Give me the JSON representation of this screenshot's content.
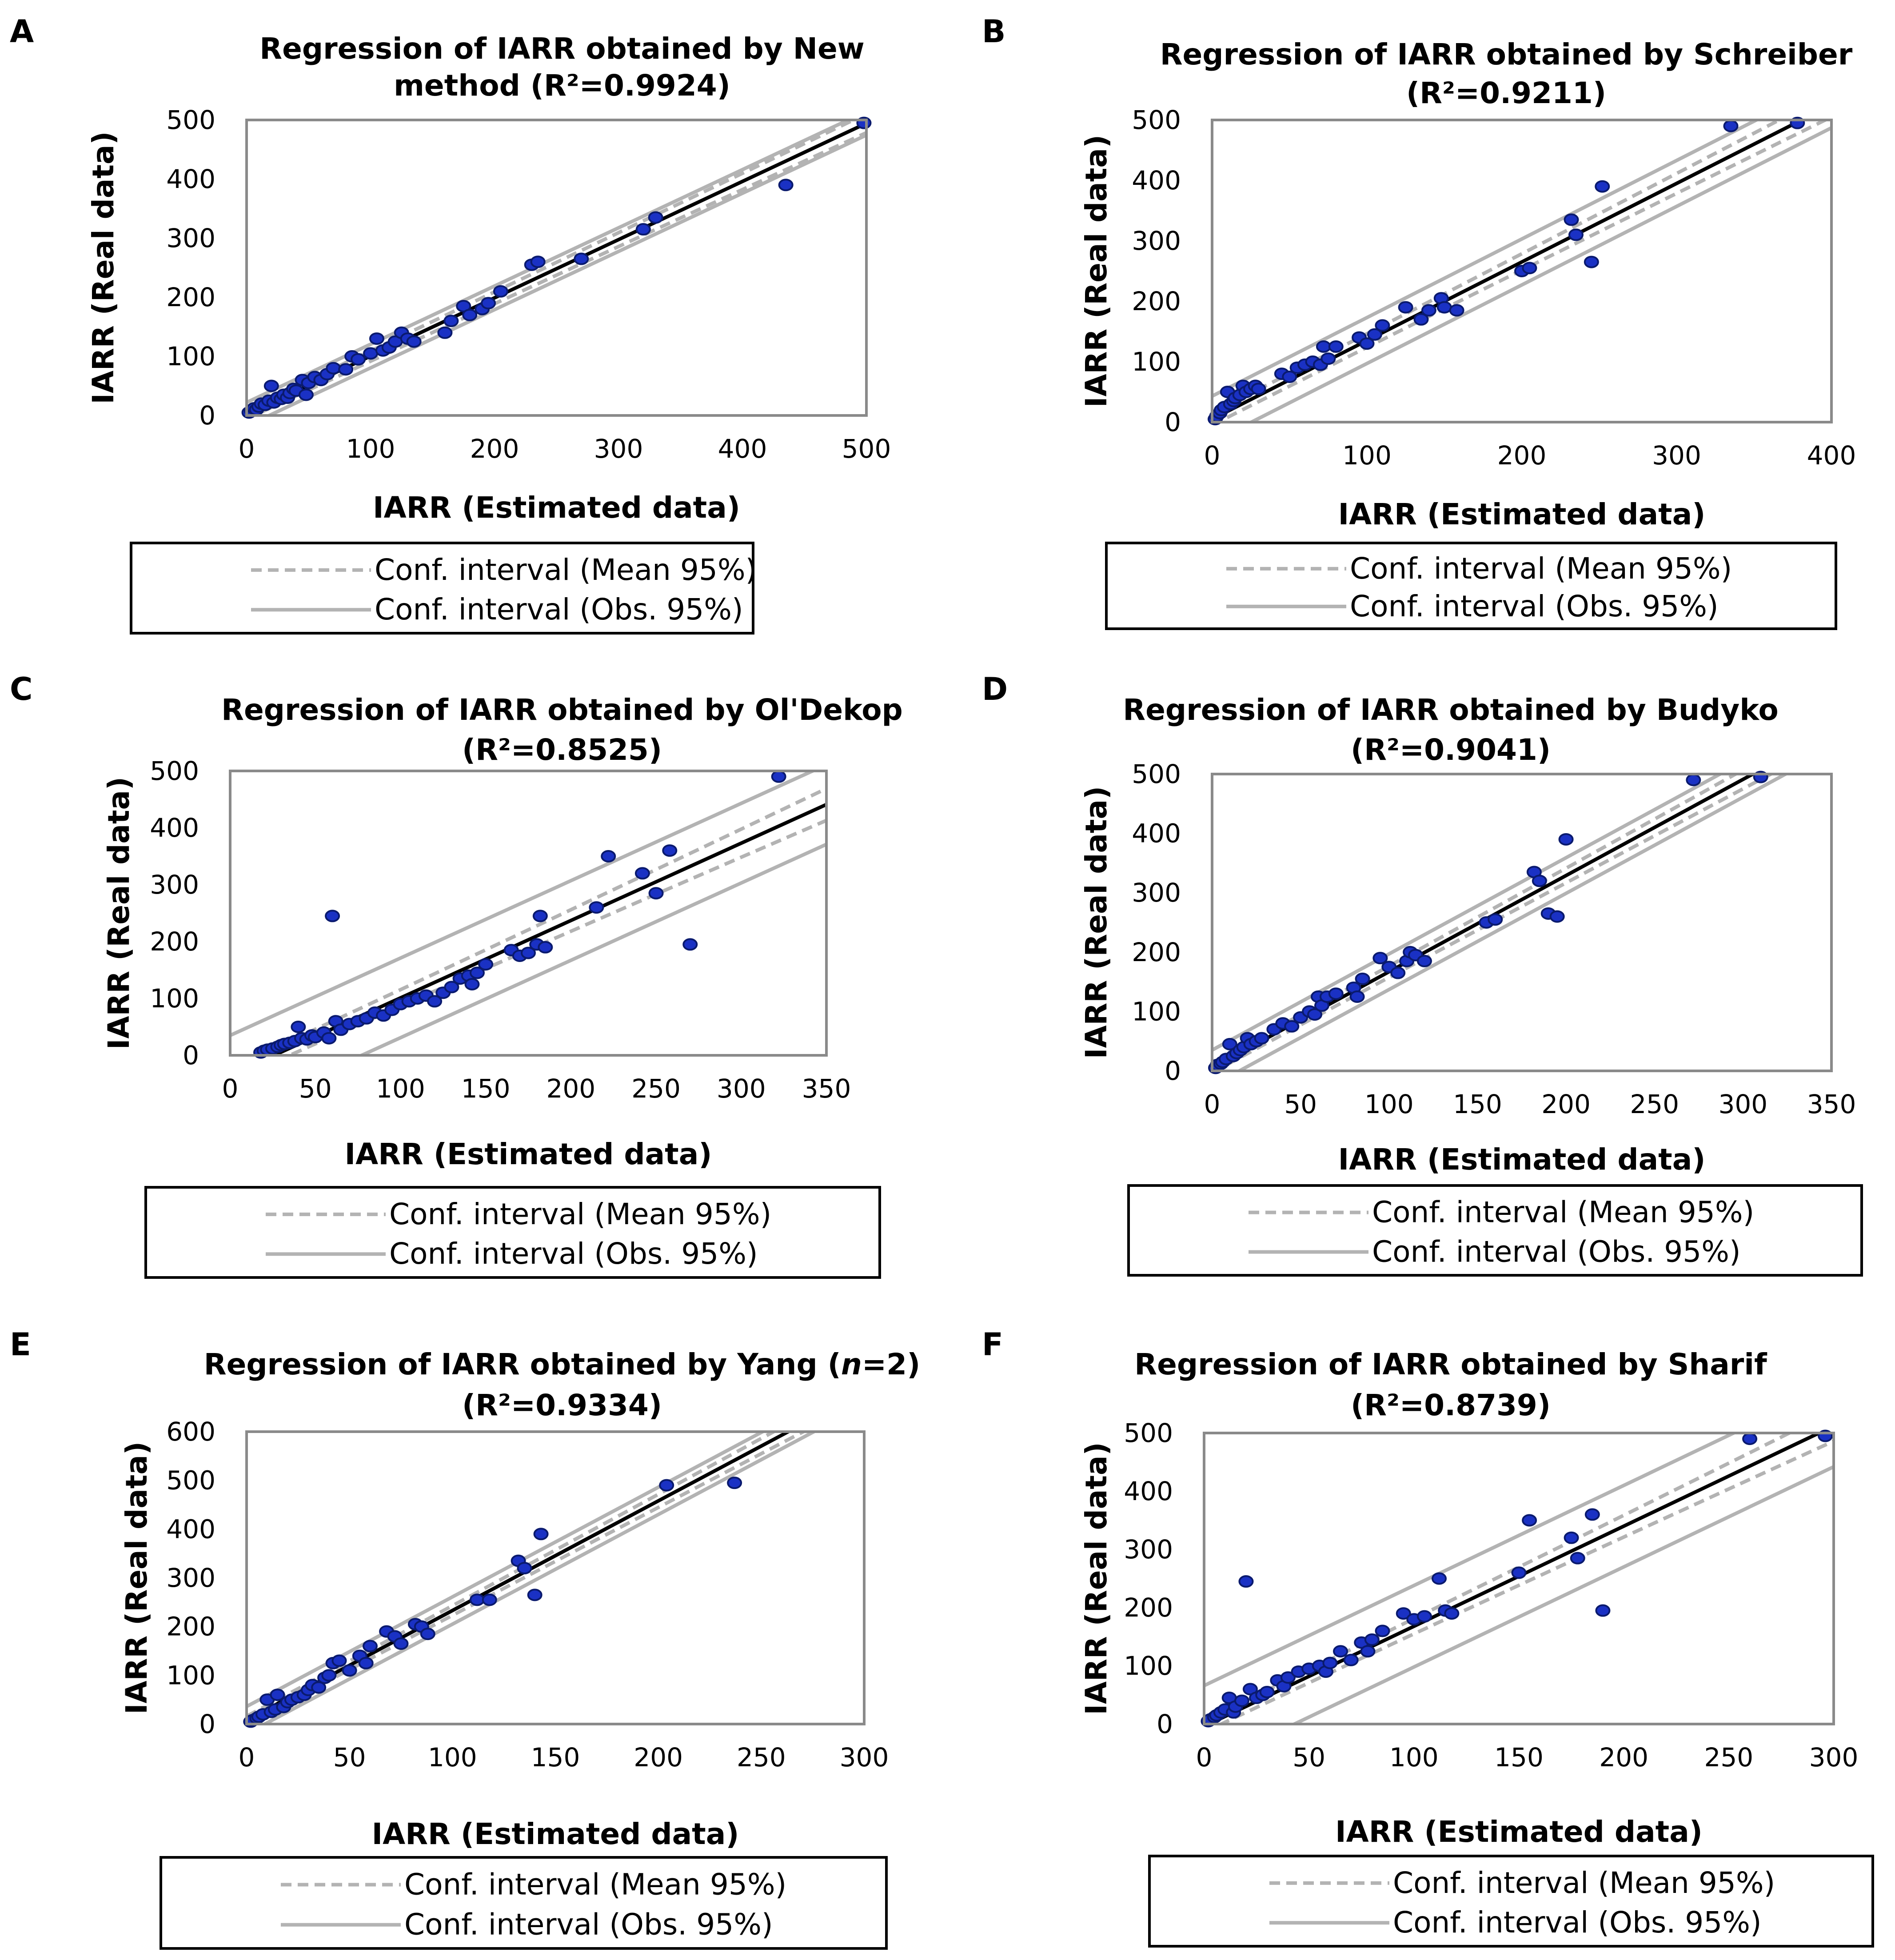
{
  "legend": {
    "mean": "Conf. interval (Mean 95%)",
    "obs": "Conf. interval (Obs. 95%)"
  },
  "colors": {
    "points": "#1a31c4",
    "regression": "#000000",
    "interval": "#b3b3b3"
  },
  "chart_data": [
    {
      "type": "scatter",
      "panel": "A",
      "title": [
        "Regression of IARR obtained  by New",
        "method  (R²=0.9924)"
      ],
      "xlabel": "IARR (Estimated data)",
      "ylabel": "IARR (Real data)",
      "xlim": [
        0,
        500
      ],
      "ylim": [
        0,
        500
      ],
      "xticks": [
        "0",
        "100",
        "200",
        "300",
        "400",
        "500"
      ],
      "yticks": [
        "0",
        "100",
        "200",
        "300",
        "400",
        "500"
      ],
      "regression": {
        "slope": 0.985,
        "intercept": 2
      },
      "mean_ci_halfwidth": [
        8,
        16
      ],
      "obs_ci_halfwidth": 20,
      "x": [
        2,
        4,
        6,
        8,
        10,
        12,
        15,
        18,
        20,
        22,
        25,
        28,
        30,
        33,
        35,
        38,
        40,
        45,
        48,
        50,
        55,
        60,
        65,
        70,
        80,
        85,
        90,
        100,
        105,
        110,
        115,
        120,
        125,
        130,
        135,
        160,
        165,
        175,
        180,
        190,
        195,
        205,
        230,
        235,
        270,
        320,
        330,
        435,
        498
      ],
      "y": [
        5,
        8,
        12,
        10,
        15,
        20,
        18,
        25,
        50,
        22,
        30,
        28,
        35,
        30,
        38,
        45,
        42,
        60,
        35,
        55,
        65,
        60,
        70,
        80,
        78,
        100,
        95,
        105,
        130,
        110,
        115,
        125,
        140,
        130,
        125,
        140,
        160,
        185,
        170,
        180,
        190,
        210,
        255,
        260,
        265,
        315,
        335,
        390,
        495
      ]
    },
    {
      "type": "scatter",
      "panel": "B",
      "title": [
        "Regression of  IARR obtained by Schreiber",
        "(R²=0.9211)"
      ],
      "xlabel": "IARR (Estimated data)",
      "ylabel": "IARR (Real data)",
      "xlim": [
        0,
        400
      ],
      "ylim": [
        0,
        500
      ],
      "xticks": [
        "0",
        "100",
        "200",
        "300",
        "400"
      ],
      "yticks": [
        "0",
        "100",
        "200",
        "300",
        "400",
        "500"
      ],
      "regression": {
        "slope": 1.3,
        "intercept": 5
      },
      "mean_ci_halfwidth": [
        10,
        20
      ],
      "obs_ci_halfwidth": 38,
      "x": [
        2,
        3,
        5,
        6,
        8,
        10,
        12,
        14,
        15,
        18,
        20,
        22,
        25,
        28,
        30,
        45,
        50,
        55,
        60,
        65,
        70,
        72,
        75,
        80,
        95,
        100,
        105,
        110,
        125,
        135,
        140,
        148,
        150,
        158,
        200,
        205,
        232,
        235,
        245,
        252,
        335,
        378
      ],
      "y": [
        5,
        10,
        15,
        20,
        25,
        50,
        30,
        35,
        40,
        45,
        60,
        50,
        55,
        60,
        55,
        80,
        75,
        90,
        95,
        100,
        95,
        125,
        105,
        125,
        140,
        130,
        145,
        160,
        190,
        170,
        185,
        205,
        190,
        185,
        250,
        255,
        335,
        310,
        265,
        390,
        490,
        495
      ]
    },
    {
      "type": "scatter",
      "panel": "C",
      "title": [
        "Regression of IARR obtained  by Ol'Dekop",
        "(R²=0.8525)"
      ],
      "xlabel": "IARR (Estimated data)",
      "ylabel": "IARR (Real data)",
      "xlim": [
        0,
        350
      ],
      "ylim": [
        0,
        500
      ],
      "xticks": [
        "0",
        "50",
        "100",
        "150",
        "200",
        "250",
        "300",
        "350"
      ],
      "yticks": [
        "0",
        "100",
        "200",
        "300",
        "400",
        "500"
      ],
      "regression": {
        "slope": 1.36,
        "intercept": -35
      },
      "mean_ci_halfwidth": [
        12,
        28
      ],
      "obs_ci_halfwidth": 70,
      "x": [
        18,
        20,
        22,
        25,
        28,
        30,
        32,
        35,
        38,
        40,
        42,
        45,
        48,
        50,
        55,
        58,
        60,
        62,
        65,
        70,
        75,
        80,
        85,
        90,
        95,
        100,
        105,
        110,
        115,
        120,
        125,
        130,
        135,
        140,
        142,
        145,
        150,
        165,
        170,
        175,
        180,
        182,
        185,
        215,
        222,
        242,
        250,
        258,
        270,
        322
      ],
      "y": [
        5,
        8,
        10,
        12,
        15,
        18,
        20,
        22,
        25,
        50,
        30,
        28,
        35,
        32,
        40,
        30,
        245,
        60,
        45,
        55,
        60,
        65,
        75,
        70,
        80,
        90,
        95,
        100,
        105,
        95,
        110,
        120,
        135,
        140,
        125,
        145,
        160,
        185,
        175,
        180,
        195,
        245,
        190,
        260,
        350,
        320,
        285,
        360,
        195,
        490
      ]
    },
    {
      "type": "scatter",
      "panel": "D",
      "title": [
        "Regression of IARR obtained by Budyko",
        "(R²=0.9041)"
      ],
      "xlabel": "IARR (Estimated data)",
      "ylabel": "IARR (Real data)",
      "xlim": [
        0,
        350
      ],
      "ylim": [
        0,
        500
      ],
      "xticks": [
        "0",
        "50",
        "100",
        "150",
        "200",
        "250",
        "300",
        "350"
      ],
      "yticks": [
        "0",
        "100",
        "200",
        "300",
        "400",
        "500"
      ],
      "regression": {
        "slope": 1.62,
        "intercept": 5
      },
      "mean_ci_halfwidth": [
        8,
        18
      ],
      "obs_ci_halfwidth": 30,
      "x": [
        2,
        3,
        5,
        6,
        8,
        10,
        12,
        14,
        16,
        18,
        20,
        22,
        25,
        28,
        35,
        40,
        45,
        50,
        55,
        58,
        60,
        62,
        65,
        70,
        80,
        82,
        85,
        95,
        100,
        105,
        110,
        112,
        115,
        120,
        155,
        160,
        182,
        185,
        190,
        195,
        200,
        272,
        310
      ],
      "y": [
        5,
        10,
        12,
        15,
        20,
        45,
        25,
        30,
        35,
        40,
        55,
        45,
        50,
        55,
        70,
        80,
        75,
        90,
        100,
        95,
        125,
        110,
        125,
        130,
        140,
        125,
        155,
        190,
        175,
        165,
        185,
        200,
        195,
        185,
        250,
        255,
        335,
        320,
        265,
        260,
        390,
        490,
        495
      ]
    },
    {
      "type": "scatter",
      "panel": "E",
      "title": [
        "Regression of IARR obtained by Yang (n=2)",
        "(R²=0.9334)"
      ],
      "xlabel": "IARR (Estimated data)",
      "ylabel": "IARR (Real data)",
      "xlim": [
        0,
        300
      ],
      "ylim": [
        0,
        600
      ],
      "xticks": [
        "0",
        "50",
        "100",
        "150",
        "200",
        "250",
        "300"
      ],
      "yticks": [
        "0",
        "100",
        "200",
        "300",
        "400",
        "500",
        "600"
      ],
      "regression": {
        "slope": 2.25,
        "intercept": 8
      },
      "mean_ci_halfwidth": [
        8,
        18
      ],
      "obs_ci_halfwidth": 28,
      "x": [
        2,
        3,
        5,
        6,
        8,
        10,
        12,
        14,
        15,
        18,
        20,
        22,
        25,
        28,
        30,
        32,
        35,
        38,
        40,
        42,
        45,
        50,
        55,
        58,
        60,
        68,
        72,
        75,
        82,
        85,
        88,
        112,
        118,
        132,
        135,
        140,
        143,
        204,
        237
      ],
      "y": [
        5,
        8,
        12,
        15,
        20,
        50,
        25,
        30,
        60,
        35,
        45,
        50,
        55,
        60,
        70,
        80,
        75,
        95,
        100,
        125,
        130,
        110,
        140,
        125,
        160,
        190,
        180,
        165,
        205,
        200,
        185,
        255,
        255,
        335,
        320,
        265,
        390,
        490,
        495
      ]
    },
    {
      "type": "scatter",
      "panel": "F",
      "title": [
        "Regression of IARR obtained by Sharif",
        "(R²=0.8739)"
      ],
      "xlabel": "IARR (Estimated data)",
      "ylabel": "IARR (Real data)",
      "xlim": [
        0,
        300
      ],
      "ylim": [
        0,
        500
      ],
      "xticks": [
        "0",
        "50",
        "100",
        "150",
        "200",
        "250",
        "300"
      ],
      "yticks": [
        "0",
        "100",
        "200",
        "300",
        "400",
        "500"
      ],
      "regression": {
        "slope": 1.72,
        "intercept": -4
      },
      "mean_ci_halfwidth": [
        10,
        26
      ],
      "obs_ci_halfwidth": 70,
      "x": [
        2,
        3,
        5,
        6,
        8,
        10,
        12,
        14,
        15,
        18,
        20,
        22,
        25,
        28,
        30,
        35,
        38,
        40,
        45,
        50,
        55,
        58,
        60,
        65,
        70,
        75,
        78,
        80,
        85,
        95,
        100,
        105,
        112,
        115,
        118,
        150,
        155,
        175,
        178,
        185,
        190,
        260,
        296
      ],
      "y": [
        5,
        8,
        12,
        15,
        20,
        25,
        45,
        20,
        30,
        40,
        245,
        60,
        45,
        50,
        55,
        75,
        65,
        80,
        90,
        95,
        100,
        90,
        105,
        125,
        110,
        140,
        125,
        145,
        160,
        190,
        180,
        185,
        250,
        195,
        190,
        260,
        350,
        320,
        285,
        360,
        195,
        490,
        495
      ]
    }
  ]
}
